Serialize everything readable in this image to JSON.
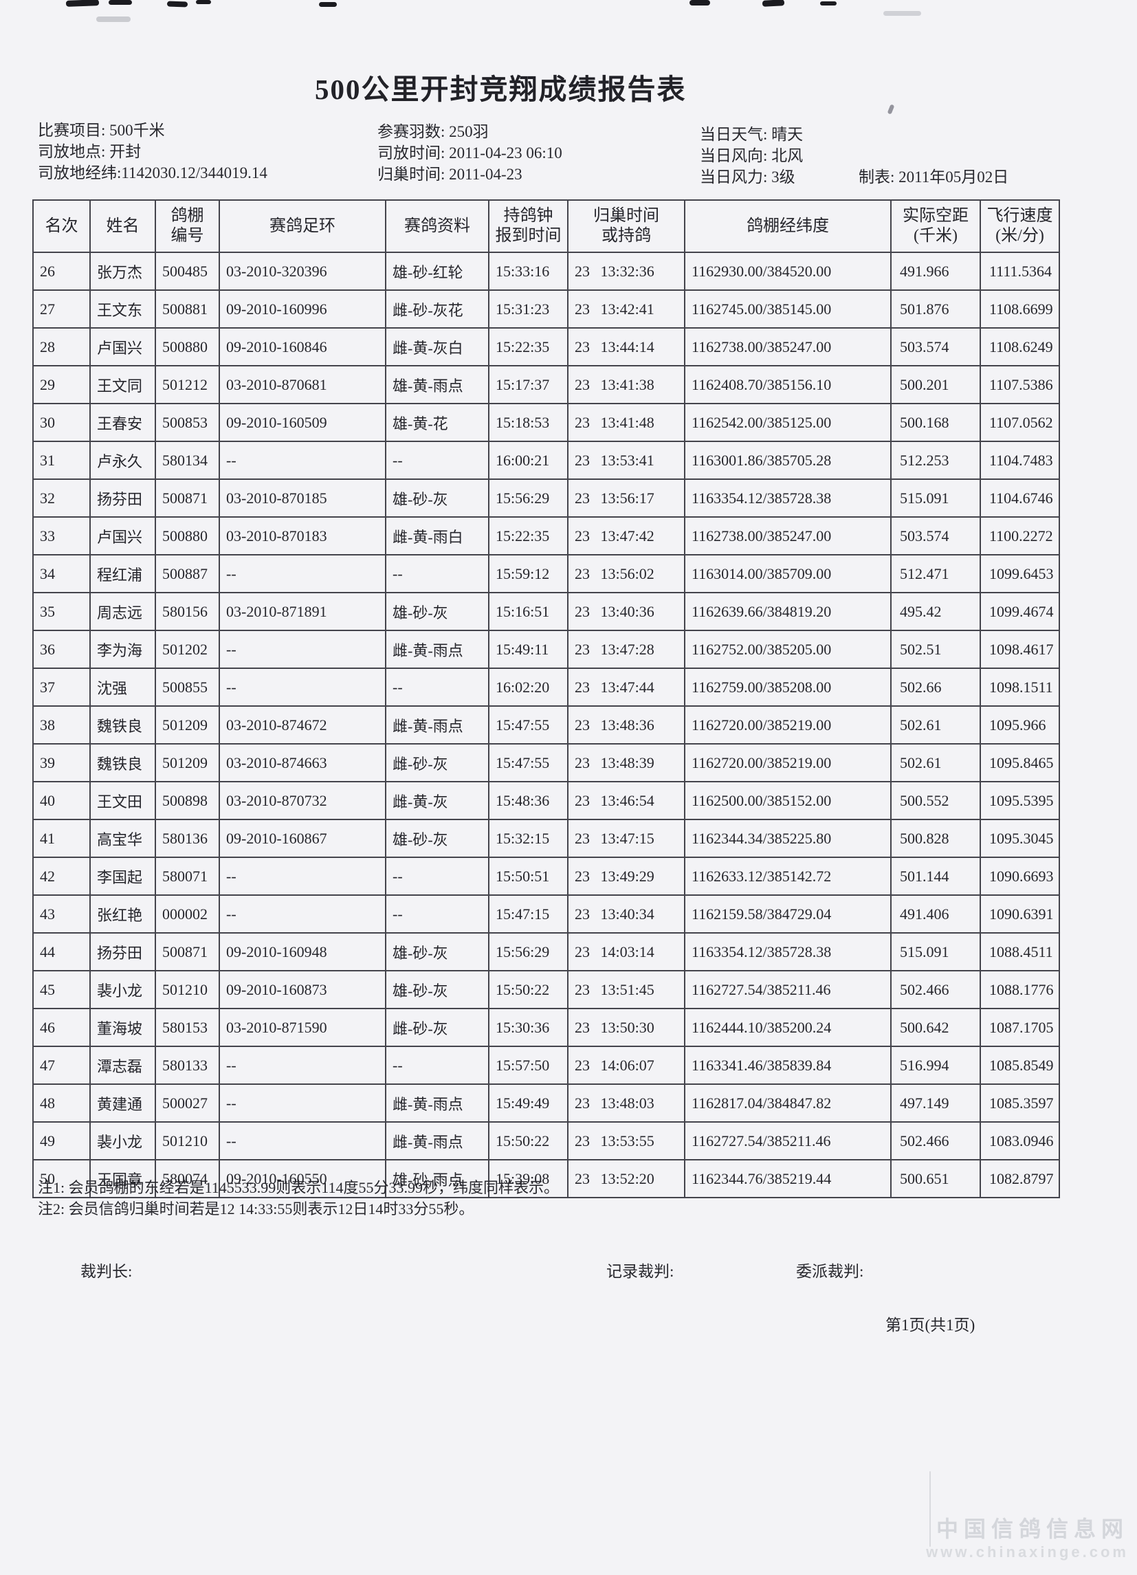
{
  "title": "500公里开封竞翔成绩报告表",
  "meta": {
    "left": [
      "比赛项目: 500千米",
      "司放地点: 开封",
      "司放地经纬:1142030.12/344019.14"
    ],
    "middle": [
      "参赛羽数: 250羽",
      "司放时间: 2011-04-23 06:10",
      "归巢时间: 2011-04-23"
    ],
    "right": [
      "当日天气: 晴天",
      "当日风向: 北风",
      "当日风力: 3级"
    ],
    "maker": "制表: 2011年05月02日"
  },
  "table": {
    "columns": [
      [
        "名次"
      ],
      [
        "姓名"
      ],
      [
        "鸽棚",
        "编号"
      ],
      [
        "赛鸽足环"
      ],
      [
        "赛鸽资料"
      ],
      [
        "持鸽钟",
        "报到时间"
      ],
      [
        "归巢时间",
        "或持鸽"
      ],
      [
        "鸽棚经纬度"
      ],
      [
        "实际空距",
        "(千米)"
      ],
      [
        "飞行速度",
        "(米/分)"
      ]
    ],
    "rows": [
      [
        "26",
        "张万杰",
        "500485",
        "03-2010-320396",
        "雄-砂-红轮",
        "15:33:16",
        "23 13:32:36",
        "1162930.00/384520.00",
        "491.966",
        "1111.5364"
      ],
      [
        "27",
        "王文东",
        "500881",
        "09-2010-160996",
        "雌-砂-灰花",
        "15:31:23",
        "23 13:42:41",
        "1162745.00/385145.00",
        "501.876",
        "1108.6699"
      ],
      [
        "28",
        "卢国兴",
        "500880",
        "09-2010-160846",
        "雌-黄-灰白",
        "15:22:35",
        "23 13:44:14",
        "1162738.00/385247.00",
        "503.574",
        "1108.6249"
      ],
      [
        "29",
        "王文同",
        "501212",
        "03-2010-870681",
        "雄-黄-雨点",
        "15:17:37",
        "23 13:41:38",
        "1162408.70/385156.10",
        "500.201",
        "1107.5386"
      ],
      [
        "30",
        "王春安",
        "500853",
        "09-2010-160509",
        "雄-黄-花",
        "15:18:53",
        "23 13:41:48",
        "1162542.00/385125.00",
        "500.168",
        "1107.0562"
      ],
      [
        "31",
        "卢永久",
        "580134",
        "--",
        "--",
        "16:00:21",
        "23 13:53:41",
        "1163001.86/385705.28",
        "512.253",
        "1104.7483"
      ],
      [
        "32",
        "扬芬田",
        "500871",
        "03-2010-870185",
        "雄-砂-灰",
        "15:56:29",
        "23 13:56:17",
        "1163354.12/385728.38",
        "515.091",
        "1104.6746"
      ],
      [
        "33",
        "卢国兴",
        "500880",
        "03-2010-870183",
        "雌-黄-雨白",
        "15:22:35",
        "23 13:47:42",
        "1162738.00/385247.00",
        "503.574",
        "1100.2272"
      ],
      [
        "34",
        "程红浦",
        "500887",
        "--",
        "--",
        "15:59:12",
        "23 13:56:02",
        "1163014.00/385709.00",
        "512.471",
        "1099.6453"
      ],
      [
        "35",
        "周志远",
        "580156",
        "03-2010-871891",
        "雄-砂-灰",
        "15:16:51",
        "23 13:40:36",
        "1162639.66/384819.20",
        "495.42",
        "1099.4674"
      ],
      [
        "36",
        "李为海",
        "501202",
        "--",
        "雌-黄-雨点",
        "15:49:11",
        "23 13:47:28",
        "1162752.00/385205.00",
        "502.51",
        "1098.4617"
      ],
      [
        "37",
        "沈强",
        "500855",
        "--",
        "--",
        "16:02:20",
        "23 13:47:44",
        "1162759.00/385208.00",
        "502.66",
        "1098.1511"
      ],
      [
        "38",
        "魏铁良",
        "501209",
        "03-2010-874672",
        "雌-黄-雨点",
        "15:47:55",
        "23 13:48:36",
        "1162720.00/385219.00",
        "502.61",
        "1095.966"
      ],
      [
        "39",
        "魏铁良",
        "501209",
        "03-2010-874663",
        "雌-砂-灰",
        "15:47:55",
        "23 13:48:39",
        "1162720.00/385219.00",
        "502.61",
        "1095.8465"
      ],
      [
        "40",
        "王文田",
        "500898",
        "03-2010-870732",
        "雌-黄-灰",
        "15:48:36",
        "23 13:46:54",
        "1162500.00/385152.00",
        "500.552",
        "1095.5395"
      ],
      [
        "41",
        "高宝华",
        "580136",
        "09-2010-160867",
        "雄-砂-灰",
        "15:32:15",
        "23 13:47:15",
        "1162344.34/385225.80",
        "500.828",
        "1095.3045"
      ],
      [
        "42",
        "李国起",
        "580071",
        "--",
        "--",
        "15:50:51",
        "23 13:49:29",
        "1162633.12/385142.72",
        "501.144",
        "1090.6693"
      ],
      [
        "43",
        "张红艳",
        "000002",
        "--",
        "--",
        "15:47:15",
        "23 13:40:34",
        "1162159.58/384729.04",
        "491.406",
        "1090.6391"
      ],
      [
        "44",
        "扬芬田",
        "500871",
        "09-2010-160948",
        "雄-砂-灰",
        "15:56:29",
        "23 14:03:14",
        "1163354.12/385728.38",
        "515.091",
        "1088.4511"
      ],
      [
        "45",
        "裴小龙",
        "501210",
        "09-2010-160873",
        "雄-砂-灰",
        "15:50:22",
        "23 13:51:45",
        "1162727.54/385211.46",
        "502.466",
        "1088.1776"
      ],
      [
        "46",
        "董海坡",
        "580153",
        "03-2010-871590",
        "雌-砂-灰",
        "15:30:36",
        "23 13:50:30",
        "1162444.10/385200.24",
        "500.642",
        "1087.1705"
      ],
      [
        "47",
        "潭志磊",
        "580133",
        "--",
        "--",
        "15:57:50",
        "23 14:06:07",
        "1163341.46/385839.84",
        "516.994",
        "1085.8549"
      ],
      [
        "48",
        "黄建通",
        "500027",
        "--",
        "雌-黄-雨点",
        "15:49:49",
        "23 13:48:03",
        "1162817.04/384847.82",
        "497.149",
        "1085.3597"
      ],
      [
        "49",
        "裴小龙",
        "501210",
        "--",
        "雌-黄-雨点",
        "15:50:22",
        "23 13:53:55",
        "1162727.54/385211.46",
        "502.466",
        "1083.0946"
      ],
      [
        "50",
        "王国章",
        "580074",
        "09-2010-160550",
        "雄-砂-雨点",
        "15:39:08",
        "23 13:52:20",
        "1162344.76/385219.44",
        "500.651",
        "1082.8797"
      ]
    ]
  },
  "notes": [
    "注1: 会员鸽棚的东经若是1145533.99则表示114度55分33.99秒，纬度同样表示。",
    "注2: 会员信鸽归巢时间若是12 14:33:55则表示12日14时33分55秒。"
  ],
  "signatures": {
    "chief": "裁判长:",
    "record": "记录裁判:",
    "assigned": "委派裁判:"
  },
  "page_label": "第1页(共1页)",
  "watermark": {
    "line1": "中国信鸽信息网",
    "line2": "www.chinaxinge.com"
  }
}
